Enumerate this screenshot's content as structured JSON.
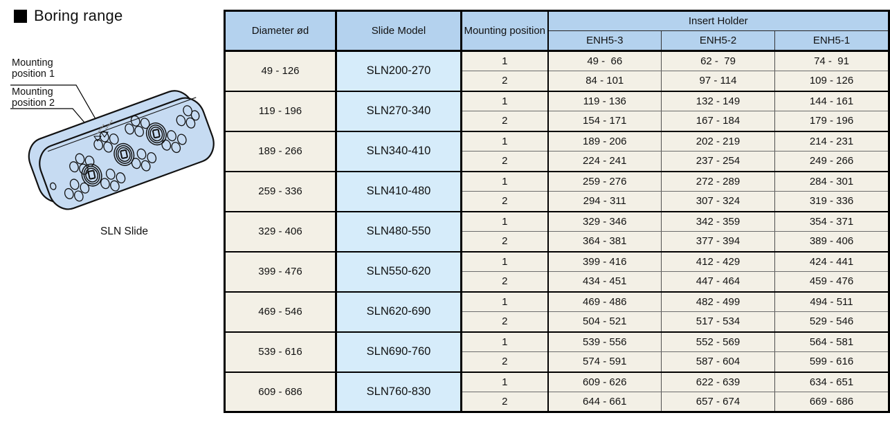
{
  "page": {
    "title": "Boring range",
    "illustration_caption": "SLN Slide",
    "callouts": {
      "mounting_position_1": "Mounting position 1",
      "mounting_position_2": "Mounting position 2"
    }
  },
  "colors": {
    "header_bg": "#b4d2ee",
    "slide_model_bg": "#d6ecfa",
    "row_bg": "#f3f0e6",
    "illustration_fill": "#c6dbf2",
    "border": "#000000"
  },
  "table": {
    "headers": {
      "diameter": "Diameter ød",
      "slide_model": "Slide Model",
      "mounting_position": "Mounting position",
      "insert_holder": "Insert Holder",
      "insert_columns": [
        "ENH5-3",
        "ENH5-2",
        "ENH5-1"
      ]
    },
    "groups": [
      {
        "diameter": "49 - 126",
        "model": "SLN200-270",
        "rows": [
          {
            "position": "1",
            "ranges": [
              "49 -  66",
              "62 -  79",
              "74 -  91"
            ]
          },
          {
            "position": "2",
            "ranges": [
              "84 - 101",
              "97 - 114",
              "109 - 126"
            ]
          }
        ]
      },
      {
        "diameter": "119 - 196",
        "model": "SLN270-340",
        "rows": [
          {
            "position": "1",
            "ranges": [
              "119 - 136",
              "132 - 149",
              "144 - 161"
            ]
          },
          {
            "position": "2",
            "ranges": [
              "154 - 171",
              "167 - 184",
              "179 - 196"
            ]
          }
        ]
      },
      {
        "diameter": "189 - 266",
        "model": "SLN340-410",
        "rows": [
          {
            "position": "1",
            "ranges": [
              "189 - 206",
              "202 - 219",
              "214 - 231"
            ]
          },
          {
            "position": "2",
            "ranges": [
              "224 - 241",
              "237 - 254",
              "249 - 266"
            ]
          }
        ]
      },
      {
        "diameter": "259 - 336",
        "model": "SLN410-480",
        "rows": [
          {
            "position": "1",
            "ranges": [
              "259 - 276",
              "272 - 289",
              "284 - 301"
            ]
          },
          {
            "position": "2",
            "ranges": [
              "294 - 311",
              "307 - 324",
              "319 - 336"
            ]
          }
        ]
      },
      {
        "diameter": "329 - 406",
        "model": "SLN480-550",
        "rows": [
          {
            "position": "1",
            "ranges": [
              "329 - 346",
              "342 - 359",
              "354 - 371"
            ]
          },
          {
            "position": "2",
            "ranges": [
              "364 - 381",
              "377 - 394",
              "389 - 406"
            ]
          }
        ]
      },
      {
        "diameter": "399 - 476",
        "model": "SLN550-620",
        "rows": [
          {
            "position": "1",
            "ranges": [
              "399 - 416",
              "412 - 429",
              "424 - 441"
            ]
          },
          {
            "position": "2",
            "ranges": [
              "434 - 451",
              "447 - 464",
              "459 - 476"
            ]
          }
        ]
      },
      {
        "diameter": "469 - 546",
        "model": "SLN620-690",
        "rows": [
          {
            "position": "1",
            "ranges": [
              "469 - 486",
              "482 - 499",
              "494 - 511"
            ]
          },
          {
            "position": "2",
            "ranges": [
              "504 - 521",
              "517 - 534",
              "529 - 546"
            ]
          }
        ]
      },
      {
        "diameter": "539 - 616",
        "model": "SLN690-760",
        "rows": [
          {
            "position": "1",
            "ranges": [
              "539 - 556",
              "552 - 569",
              "564 - 581"
            ]
          },
          {
            "position": "2",
            "ranges": [
              "574 - 591",
              "587 - 604",
              "599 - 616"
            ]
          }
        ]
      },
      {
        "diameter": "609 - 686",
        "model": "SLN760-830",
        "rows": [
          {
            "position": "1",
            "ranges": [
              "609 - 626",
              "622 - 639",
              "634 - 651"
            ]
          },
          {
            "position": "2",
            "ranges": [
              "644 - 661",
              "657 - 674",
              "669 - 686"
            ]
          }
        ]
      }
    ]
  }
}
